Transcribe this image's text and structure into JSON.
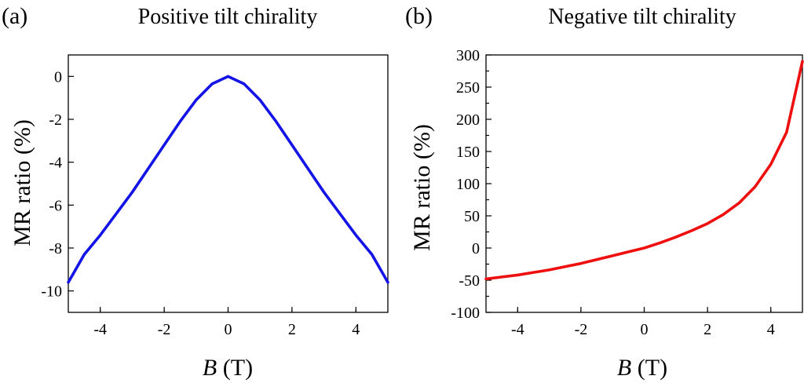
{
  "chart_data": [
    {
      "type": "line",
      "panel_label": "(a)",
      "title": "Positive tilt chirality",
      "xlabel_italic": "B",
      "xlabel_rest": " (T)",
      "ylabel": "MR ratio (%)",
      "xlim": [
        -5,
        5
      ],
      "ylim": [
        -11,
        1
      ],
      "xticks": [
        -4,
        -2,
        0,
        2,
        4
      ],
      "yticks": [
        0,
        -2,
        -4,
        -6,
        -8,
        -10
      ],
      "grid": false,
      "series": [
        {
          "color": "#1414e6",
          "x": [
            -5,
            -4.5,
            -4,
            -3.5,
            -3,
            -2.5,
            -2,
            -1.5,
            -1,
            -0.5,
            0,
            0.5,
            1,
            1.5,
            2,
            2.5,
            3,
            3.5,
            4,
            4.5,
            5
          ],
          "y": [
            -9.6,
            -8.3,
            -7.4,
            -6.4,
            -5.4,
            -4.3,
            -3.2,
            -2.1,
            -1.1,
            -0.35,
            0,
            -0.35,
            -1.1,
            -2.1,
            -3.2,
            -4.3,
            -5.4,
            -6.4,
            -7.4,
            -8.3,
            -9.6
          ]
        }
      ]
    },
    {
      "type": "line",
      "panel_label": "(b)",
      "title": "Negative tilt chirality",
      "xlabel_italic": "B",
      "xlabel_rest": " (T)",
      "ylabel": "MR ratio (%)",
      "xlim": [
        -5,
        5
      ],
      "ylim": [
        -100,
        300
      ],
      "xticks": [
        -4,
        -2,
        0,
        2,
        4
      ],
      "yticks": [
        300,
        250,
        200,
        150,
        100,
        50,
        0,
        -50,
        -100
      ],
      "grid": false,
      "series": [
        {
          "color": "#ee0f0f",
          "x": [
            -5,
            -4.5,
            -4,
            -3.5,
            -3,
            -2.5,
            -2,
            -1.5,
            -1,
            -0.5,
            0,
            0.5,
            1,
            1.5,
            2,
            2.5,
            3,
            3.5,
            4,
            4.5,
            5
          ],
          "y": [
            -48,
            -45,
            -42,
            -38,
            -34,
            -29,
            -24,
            -18,
            -12,
            -6,
            0,
            8,
            17,
            27,
            38,
            52,
            70,
            95,
            130,
            180,
            290
          ]
        }
      ]
    }
  ]
}
